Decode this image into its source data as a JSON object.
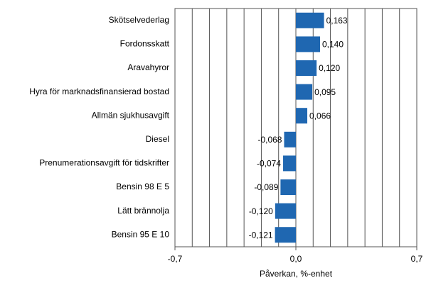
{
  "chart_data": {
    "type": "bar",
    "orientation": "horizontal",
    "categories": [
      "Skötselvederlag",
      "Fordonsskatt",
      "Aravahyror",
      "Hyra för marknadsfinansierad bostad",
      "Allmän sjukhusavgift",
      "Diesel",
      "Prenumerationsavgift för tidskrifter",
      "Bensin 98 E  5",
      "Lätt brännolja",
      "Bensin 95 E 10"
    ],
    "values": [
      0.163,
      0.14,
      0.12,
      0.095,
      0.066,
      -0.068,
      -0.074,
      -0.089,
      -0.12,
      -0.121
    ],
    "value_labels": [
      "0,163",
      "0,140",
      "0,120",
      "0,095",
      "0,066",
      "-0,068",
      "-0,074",
      "-0,089",
      "-0,120",
      "-0,121"
    ],
    "color": "#1f67b1",
    "xlabel": "Påverkan, %-enhet",
    "xlim": [
      -0.7,
      0.7
    ],
    "xticks": [
      {
        "value": -0.7,
        "label": "-0,7"
      },
      {
        "value": 0,
        "label": "0,0"
      },
      {
        "value": 0.7,
        "label": "0,7"
      }
    ],
    "xgrid": [
      -0.6,
      -0.5,
      -0.4,
      -0.3,
      -0.2,
      -0.1,
      0,
      0.1,
      0.2,
      0.3,
      0.4,
      0.5,
      0.6
    ],
    "grid": true
  }
}
